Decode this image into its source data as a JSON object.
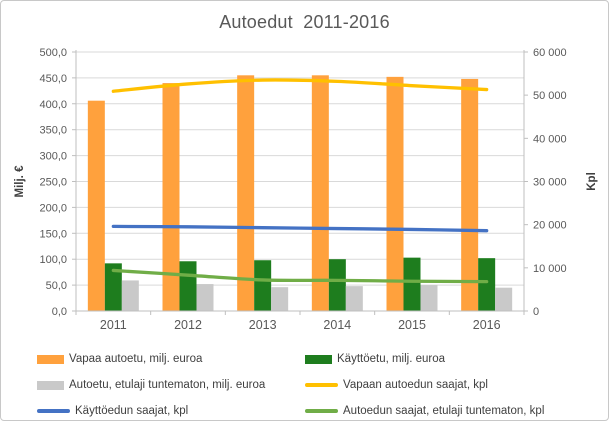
{
  "chart_data": {
    "type": "combo bar+line",
    "title": "Autoedut  2011-2016",
    "categories": [
      "2011",
      "2012",
      "2013",
      "2014",
      "2015",
      "2016"
    ],
    "left_axis": {
      "label": "Milj. €",
      "min": 0,
      "max": 500,
      "step": 50,
      "ticks": [
        "0,0",
        "50,0",
        "100,0",
        "150,0",
        "200,0",
        "250,0",
        "300,0",
        "350,0",
        "400,0",
        "450,0",
        "500,0"
      ]
    },
    "right_axis": {
      "label": "Kpl",
      "min": 0,
      "max": 60000,
      "step": 10000,
      "ticks": [
        "0",
        "10 000",
        "20 000",
        "30 000",
        "40 000",
        "50 000",
        "60 000"
      ]
    },
    "bar_series": [
      {
        "name": "Vapaa autoetu, milj. euroa",
        "axis": "left",
        "color": "#FFA13D",
        "values": [
          406,
          440,
          455,
          455,
          452,
          448
        ]
      },
      {
        "name": "Käyttöetu, milj. euroa",
        "axis": "left",
        "color": "#1E7D1E",
        "values": [
          92,
          96,
          98,
          100,
          103,
          102
        ]
      },
      {
        "name": "Autoetu, etulaji tuntematon, milj. euroa",
        "axis": "left",
        "color": "#C9C9C9",
        "values": [
          59,
          52,
          46,
          48,
          50,
          45
        ]
      }
    ],
    "line_series": [
      {
        "name": "Vapaan autoedun saajat, kpl",
        "axis": "right",
        "color": "#FFC000",
        "values": [
          50900,
          52600,
          53500,
          53200,
          52200,
          51300
        ]
      },
      {
        "name": "Käyttöedun saajat, kpl",
        "axis": "right",
        "color": "#4472C4",
        "values": [
          19600,
          19500,
          19300,
          19100,
          18900,
          18600
        ]
      },
      {
        "name": "Autoedun saajat, etulaji tuntematon, kpl",
        "axis": "right",
        "color": "#70AD47",
        "values": [
          9400,
          8300,
          7200,
          7100,
          6900,
          6800
        ]
      }
    ],
    "legend_columns": [
      [
        "bar:0",
        "bar:2",
        "line:1"
      ],
      [
        "bar:1",
        "line:0",
        "line:2"
      ]
    ],
    "layout": {
      "grid": true,
      "legend_position": "bottom",
      "colors": {
        "gridline": "#D9D9D9",
        "axis_line": "#BFBFBF",
        "title_text": "#595959",
        "tick_text": "#595959",
        "axis_title_text": "#404040",
        "legend_text": "#3F3F3F",
        "border": "#C8C8C8",
        "background": "#FFFFFF"
      }
    }
  }
}
